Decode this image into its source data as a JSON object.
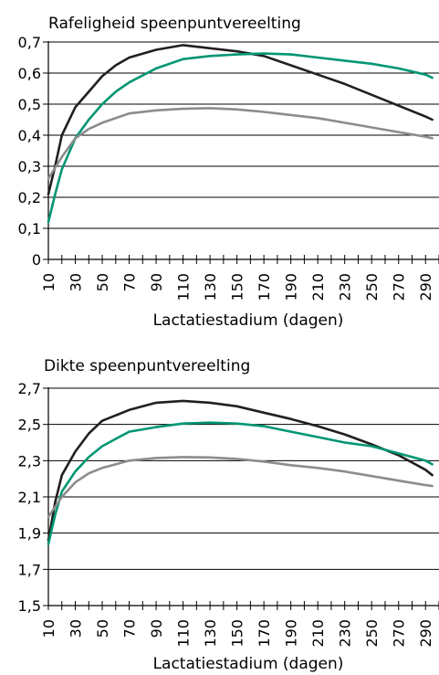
{
  "chart_data": [
    {
      "type": "line",
      "title": "Rafeligheid speenpuntvereelting",
      "xlabel": "Lactatiestadium (dagen)",
      "ylabel": "",
      "xlim": [
        10,
        300
      ],
      "ylim": [
        0,
        0.7
      ],
      "y_ticks": [
        "0",
        "0,1",
        "0,2",
        "0,3",
        "0,4",
        "0,5",
        "0,6",
        "0,7"
      ],
      "x_ticks": [
        "10",
        "30",
        "50",
        "70",
        "90",
        "110",
        "130",
        "150",
        "170",
        "190",
        "210",
        "230",
        "250",
        "270",
        "290"
      ],
      "grid": "horizontal",
      "series": [
        {
          "color": "#231f20",
          "points": [
            [
              10,
              0.21
            ],
            [
              15,
              0.3
            ],
            [
              20,
              0.4
            ],
            [
              30,
              0.49
            ],
            [
              40,
              0.54
            ],
            [
              50,
              0.59
            ],
            [
              60,
              0.625
            ],
            [
              70,
              0.65
            ],
            [
              90,
              0.675
            ],
            [
              110,
              0.69
            ],
            [
              130,
              0.68
            ],
            [
              150,
              0.67
            ],
            [
              170,
              0.655
            ],
            [
              190,
              0.625
            ],
            [
              210,
              0.595
            ],
            [
              230,
              0.565
            ],
            [
              250,
              0.53
            ],
            [
              270,
              0.495
            ],
            [
              290,
              0.46
            ],
            [
              295,
              0.45
            ]
          ]
        },
        {
          "color": "#009673",
          "points": [
            [
              10,
              0.12
            ],
            [
              15,
              0.21
            ],
            [
              20,
              0.29
            ],
            [
              30,
              0.39
            ],
            [
              40,
              0.45
            ],
            [
              50,
              0.5
            ],
            [
              60,
              0.54
            ],
            [
              70,
              0.57
            ],
            [
              90,
              0.615
            ],
            [
              110,
              0.645
            ],
            [
              130,
              0.655
            ],
            [
              150,
              0.66
            ],
            [
              170,
              0.663
            ],
            [
              190,
              0.66
            ],
            [
              210,
              0.65
            ],
            [
              230,
              0.64
            ],
            [
              250,
              0.63
            ],
            [
              270,
              0.615
            ],
            [
              290,
              0.595
            ],
            [
              295,
              0.585
            ]
          ]
        },
        {
          "color": "#8c8c8c",
          "points": [
            [
              10,
              0.26
            ],
            [
              20,
              0.33
            ],
            [
              30,
              0.39
            ],
            [
              40,
              0.42
            ],
            [
              50,
              0.44
            ],
            [
              70,
              0.47
            ],
            [
              90,
              0.48
            ],
            [
              110,
              0.485
            ],
            [
              130,
              0.487
            ],
            [
              150,
              0.483
            ],
            [
              170,
              0.475
            ],
            [
              190,
              0.465
            ],
            [
              210,
              0.455
            ],
            [
              230,
              0.44
            ],
            [
              250,
              0.425
            ],
            [
              270,
              0.41
            ],
            [
              290,
              0.395
            ],
            [
              295,
              0.39
            ]
          ]
        }
      ]
    },
    {
      "type": "line",
      "title": "Dikte speenpuntvereelting",
      "xlabel": "Lactatiestadium (dagen)",
      "ylabel": "",
      "xlim": [
        10,
        300
      ],
      "ylim": [
        1.5,
        2.7
      ],
      "y_ticks": [
        "1,5",
        "1,7",
        "1,9",
        "2,1",
        "2,3",
        "2,5",
        "2,7"
      ],
      "x_ticks": [
        "10",
        "30",
        "50",
        "70",
        "90",
        "110",
        "130",
        "150",
        "170",
        "190",
        "210",
        "230",
        "250",
        "270",
        "290"
      ],
      "grid": "horizontal",
      "series": [
        {
          "color": "#231f20",
          "points": [
            [
              10,
              1.86
            ],
            [
              15,
              2.07
            ],
            [
              20,
              2.22
            ],
            [
              30,
              2.35
            ],
            [
              40,
              2.45
            ],
            [
              50,
              2.52
            ],
            [
              70,
              2.58
            ],
            [
              90,
              2.62
            ],
            [
              110,
              2.63
            ],
            [
              130,
              2.62
            ],
            [
              150,
              2.6
            ],
            [
              170,
              2.565
            ],
            [
              190,
              2.53
            ],
            [
              210,
              2.49
            ],
            [
              230,
              2.445
            ],
            [
              250,
              2.39
            ],
            [
              270,
              2.33
            ],
            [
              290,
              2.25
            ],
            [
              295,
              2.22
            ]
          ]
        },
        {
          "color": "#009673",
          "points": [
            [
              10,
              1.84
            ],
            [
              15,
              2.0
            ],
            [
              20,
              2.13
            ],
            [
              30,
              2.24
            ],
            [
              40,
              2.32
            ],
            [
              50,
              2.38
            ],
            [
              60,
              2.42
            ],
            [
              70,
              2.46
            ],
            [
              90,
              2.485
            ],
            [
              110,
              2.505
            ],
            [
              130,
              2.51
            ],
            [
              150,
              2.505
            ],
            [
              170,
              2.49
            ],
            [
              190,
              2.46
            ],
            [
              210,
              2.43
            ],
            [
              230,
              2.4
            ],
            [
              250,
              2.38
            ],
            [
              270,
              2.34
            ],
            [
              290,
              2.3
            ],
            [
              295,
              2.28
            ]
          ]
        },
        {
          "color": "#8c8c8c",
          "points": [
            [
              10,
              1.99
            ],
            [
              20,
              2.1
            ],
            [
              30,
              2.18
            ],
            [
              40,
              2.23
            ],
            [
              50,
              2.26
            ],
            [
              70,
              2.3
            ],
            [
              90,
              2.315
            ],
            [
              110,
              2.32
            ],
            [
              130,
              2.318
            ],
            [
              150,
              2.31
            ],
            [
              170,
              2.295
            ],
            [
              190,
              2.275
            ],
            [
              210,
              2.26
            ],
            [
              230,
              2.24
            ],
            [
              250,
              2.215
            ],
            [
              270,
              2.19
            ],
            [
              290,
              2.165
            ],
            [
              295,
              2.16
            ]
          ]
        }
      ]
    }
  ]
}
